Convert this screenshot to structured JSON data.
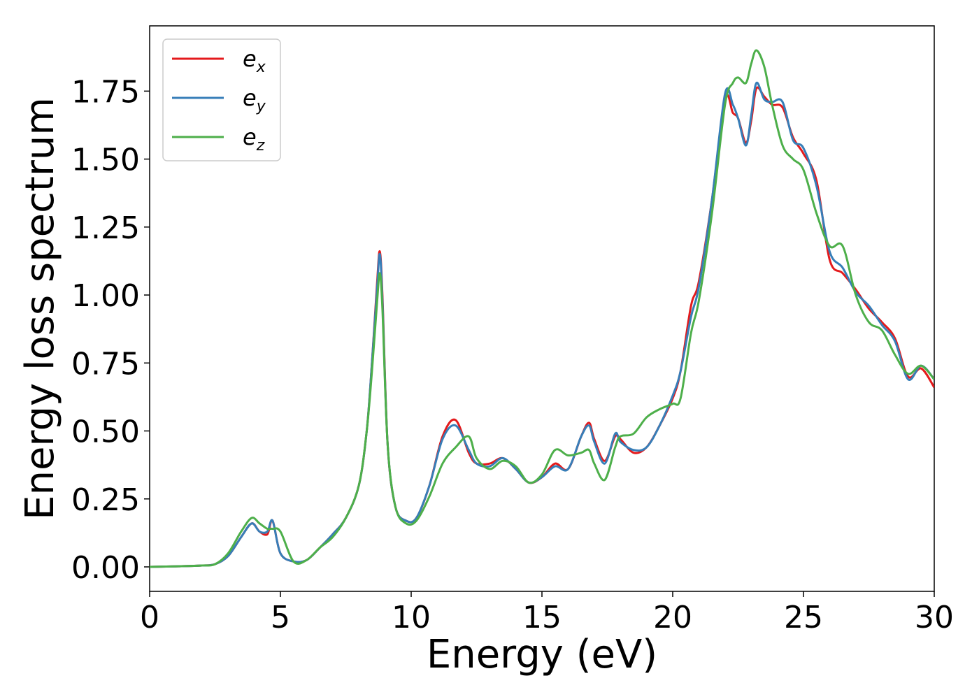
{
  "chart_data": {
    "type": "line",
    "title": "",
    "xlabel": "Energy (eV)",
    "ylabel": "Energy loss spectrum",
    "xlim": [
      0,
      30
    ],
    "ylim": [
      -0.09,
      1.99
    ],
    "xticks": [
      0,
      5,
      10,
      15,
      20,
      25,
      30
    ],
    "xtick_labels": [
      "0",
      "5",
      "10",
      "15",
      "20",
      "25",
      "30"
    ],
    "yticks": [
      0.0,
      0.25,
      0.5,
      0.75,
      1.0,
      1.25,
      1.5,
      1.75
    ],
    "ytick_labels": [
      "0.00",
      "0.25",
      "0.50",
      "0.75",
      "1.00",
      "1.25",
      "1.50",
      "1.75"
    ],
    "grid": false,
    "legend_position": "top-left",
    "series": [
      {
        "name": "e_x",
        "label_base": "e",
        "label_sub": "x",
        "color": "#e41a1c",
        "x": [
          0,
          1,
          2,
          2.5,
          3,
          3.5,
          3.9,
          4.2,
          4.5,
          4.7,
          5.0,
          5.5,
          6.0,
          6.5,
          7.0,
          7.5,
          8.0,
          8.3,
          8.5,
          8.7,
          8.8,
          8.9,
          9.1,
          9.4,
          9.8,
          10.2,
          10.7,
          11.2,
          11.7,
          12.2,
          12.5,
          13.0,
          13.5,
          14.0,
          14.5,
          15.0,
          15.5,
          16.0,
          16.5,
          16.8,
          17.0,
          17.4,
          17.8,
          18.0,
          18.5,
          19.0,
          19.5,
          20.0,
          20.3,
          20.7,
          21.0,
          21.5,
          22.0,
          22.3,
          22.5,
          22.8,
          23.0,
          23.2,
          23.5,
          23.8,
          24.2,
          24.6,
          25.0,
          25.5,
          26.0,
          26.5,
          27.0,
          27.5,
          28.0,
          28.5,
          29.0,
          29.5,
          30.0
        ],
        "y": [
          0.0,
          0.002,
          0.005,
          0.01,
          0.04,
          0.11,
          0.16,
          0.13,
          0.12,
          0.17,
          0.05,
          0.02,
          0.025,
          0.07,
          0.12,
          0.18,
          0.3,
          0.5,
          0.75,
          1.05,
          1.16,
          1.0,
          0.45,
          0.22,
          0.17,
          0.18,
          0.3,
          0.48,
          0.54,
          0.42,
          0.38,
          0.38,
          0.4,
          0.36,
          0.31,
          0.33,
          0.38,
          0.36,
          0.48,
          0.53,
          0.47,
          0.39,
          0.48,
          0.47,
          0.42,
          0.44,
          0.52,
          0.62,
          0.72,
          0.96,
          1.05,
          1.35,
          1.72,
          1.67,
          1.65,
          1.56,
          1.64,
          1.76,
          1.73,
          1.7,
          1.69,
          1.58,
          1.52,
          1.42,
          1.13,
          1.08,
          1.02,
          0.95,
          0.9,
          0.84,
          0.7,
          0.73,
          0.66
        ]
      },
      {
        "name": "e_y",
        "label_base": "e",
        "label_sub": "y",
        "color": "#377eb8",
        "x": [
          0,
          1,
          2,
          2.5,
          3,
          3.5,
          3.9,
          4.2,
          4.5,
          4.7,
          5.0,
          5.5,
          6.0,
          6.5,
          7.0,
          7.5,
          8.0,
          8.3,
          8.5,
          8.7,
          8.8,
          8.9,
          9.1,
          9.4,
          9.8,
          10.2,
          10.7,
          11.2,
          11.7,
          12.2,
          12.5,
          13.0,
          13.5,
          14.0,
          14.5,
          15.0,
          15.5,
          16.0,
          16.5,
          16.8,
          17.0,
          17.4,
          17.8,
          18.0,
          18.5,
          19.0,
          19.5,
          20.0,
          20.3,
          20.7,
          21.0,
          21.5,
          22.0,
          22.3,
          22.5,
          22.8,
          23.0,
          23.2,
          23.5,
          23.8,
          24.2,
          24.6,
          25.0,
          25.5,
          26.0,
          26.5,
          27.0,
          27.5,
          28.0,
          28.5,
          29.0,
          29.5,
          30.0
        ],
        "y": [
          0.0,
          0.002,
          0.005,
          0.01,
          0.04,
          0.11,
          0.16,
          0.13,
          0.13,
          0.17,
          0.05,
          0.02,
          0.025,
          0.07,
          0.12,
          0.18,
          0.3,
          0.5,
          0.75,
          1.03,
          1.15,
          0.98,
          0.45,
          0.22,
          0.17,
          0.18,
          0.3,
          0.47,
          0.52,
          0.43,
          0.38,
          0.37,
          0.4,
          0.36,
          0.31,
          0.33,
          0.37,
          0.36,
          0.48,
          0.52,
          0.46,
          0.38,
          0.49,
          0.46,
          0.43,
          0.44,
          0.52,
          0.63,
          0.72,
          0.92,
          1.03,
          1.35,
          1.74,
          1.7,
          1.65,
          1.55,
          1.66,
          1.78,
          1.72,
          1.71,
          1.71,
          1.57,
          1.54,
          1.4,
          1.16,
          1.1,
          1.01,
          0.96,
          0.89,
          0.83,
          0.69,
          0.74,
          0.69
        ]
      },
      {
        "name": "e_z",
        "label_base": "e",
        "label_sub": "z",
        "color": "#4daf4a",
        "x": [
          0,
          1,
          2,
          2.5,
          3,
          3.5,
          3.9,
          4.2,
          4.5,
          4.7,
          5.0,
          5.5,
          6.0,
          6.5,
          7.0,
          7.5,
          8.0,
          8.3,
          8.5,
          8.7,
          8.8,
          8.9,
          9.1,
          9.4,
          9.8,
          10.2,
          10.7,
          11.2,
          11.7,
          12.2,
          12.5,
          13.0,
          13.5,
          14.0,
          14.5,
          15.0,
          15.5,
          16.0,
          16.5,
          16.8,
          17.0,
          17.4,
          17.8,
          18.0,
          18.5,
          19.0,
          19.5,
          20.0,
          20.3,
          20.7,
          21.0,
          21.5,
          22.0,
          22.3,
          22.5,
          22.8,
          23.0,
          23.2,
          23.5,
          23.8,
          24.2,
          24.6,
          25.0,
          25.5,
          26.0,
          26.5,
          27.0,
          27.5,
          28.0,
          28.5,
          29.0,
          29.5,
          30.0
        ],
        "y": [
          0.0,
          0.002,
          0.005,
          0.01,
          0.05,
          0.13,
          0.18,
          0.16,
          0.14,
          0.14,
          0.13,
          0.02,
          0.025,
          0.07,
          0.11,
          0.18,
          0.3,
          0.5,
          0.72,
          0.98,
          1.08,
          0.95,
          0.45,
          0.22,
          0.16,
          0.17,
          0.26,
          0.38,
          0.44,
          0.48,
          0.4,
          0.36,
          0.39,
          0.37,
          0.31,
          0.34,
          0.43,
          0.41,
          0.42,
          0.43,
          0.38,
          0.32,
          0.44,
          0.48,
          0.49,
          0.55,
          0.58,
          0.6,
          0.62,
          0.86,
          0.98,
          1.3,
          1.7,
          1.78,
          1.8,
          1.78,
          1.85,
          1.9,
          1.84,
          1.7,
          1.55,
          1.5,
          1.46,
          1.3,
          1.18,
          1.18,
          1.0,
          0.9,
          0.87,
          0.78,
          0.71,
          0.74,
          0.69
        ]
      }
    ]
  }
}
